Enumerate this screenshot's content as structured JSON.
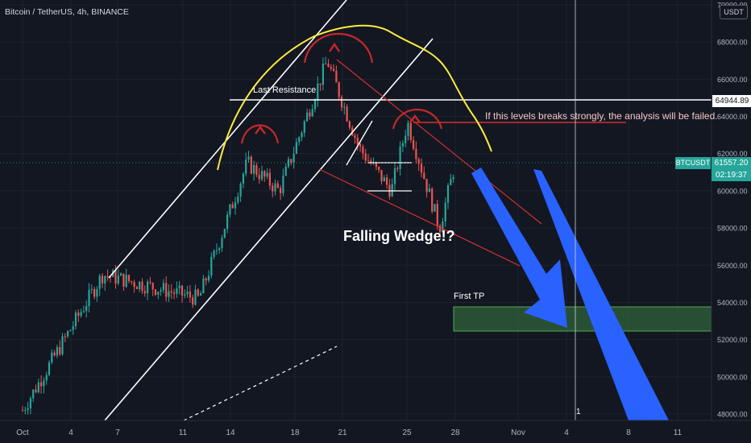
{
  "header": {
    "symbol_title": "Bitcoin / TetherUS, 4h, BINANCE",
    "currency_label": "USDT"
  },
  "price_axis": {
    "labels": [
      "70000.00",
      "68000.00",
      "66000.00",
      "64000.00",
      "62000.00",
      "60000.00",
      "58000.00",
      "56000.00",
      "54000.00",
      "52000.00",
      "50000.00",
      "48000.00"
    ],
    "level_tag": "64944.89",
    "symbol_tag": "BTCUSDT",
    "price_tag": "61557.20",
    "countdown_tag": "02:19:37"
  },
  "time_axis": {
    "labels": [
      "Oct",
      "4",
      "7",
      "11",
      "14",
      "18",
      "21",
      "25",
      "28",
      "Nov",
      "4",
      "8",
      "11"
    ]
  },
  "annotations": {
    "last_resistance": "Last Resistance",
    "warning": "If this levels breaks strongly, the analysis will be failed.",
    "pattern": "Falling Wedge!?",
    "first_tp": "First TP",
    "marker": "1"
  },
  "colors": {
    "background": "#131722",
    "bullish": "#26a69a",
    "bearish": "#ef5350",
    "channel": "#ffffff",
    "arc": "#ffeb3b",
    "head_shoulders": "#c62828",
    "wedge": "#d32f2f",
    "target_zone": "#2e5e3a",
    "projection_arrow": "#2962ff"
  },
  "chart_data": {
    "type": "candlestick",
    "timeframe": "4h",
    "exchange": "BINANCE",
    "pair": "BTC/USDT",
    "ylim": [
      47500,
      70000
    ],
    "last_price": 61557.2,
    "resistance_level": 64944.89,
    "target_zone": [
      52500,
      53800
    ],
    "key_points": [
      {
        "date": "Oct 1",
        "price": 48200
      },
      {
        "date": "Oct 6",
        "price": 55500
      },
      {
        "date": "Oct 12",
        "price": 54200
      },
      {
        "date": "Oct 15",
        "price": 61500
      },
      {
        "date": "Oct 17",
        "price": 60000
      },
      {
        "date": "Oct 20",
        "price": 67000
      },
      {
        "date": "Oct 22",
        "price": 62300
      },
      {
        "date": "Oct 24",
        "price": 60000
      },
      {
        "date": "Oct 25",
        "price": 63700
      },
      {
        "date": "Oct 27",
        "price": 58000
      },
      {
        "date": "Oct 28",
        "price": 61557
      }
    ]
  }
}
